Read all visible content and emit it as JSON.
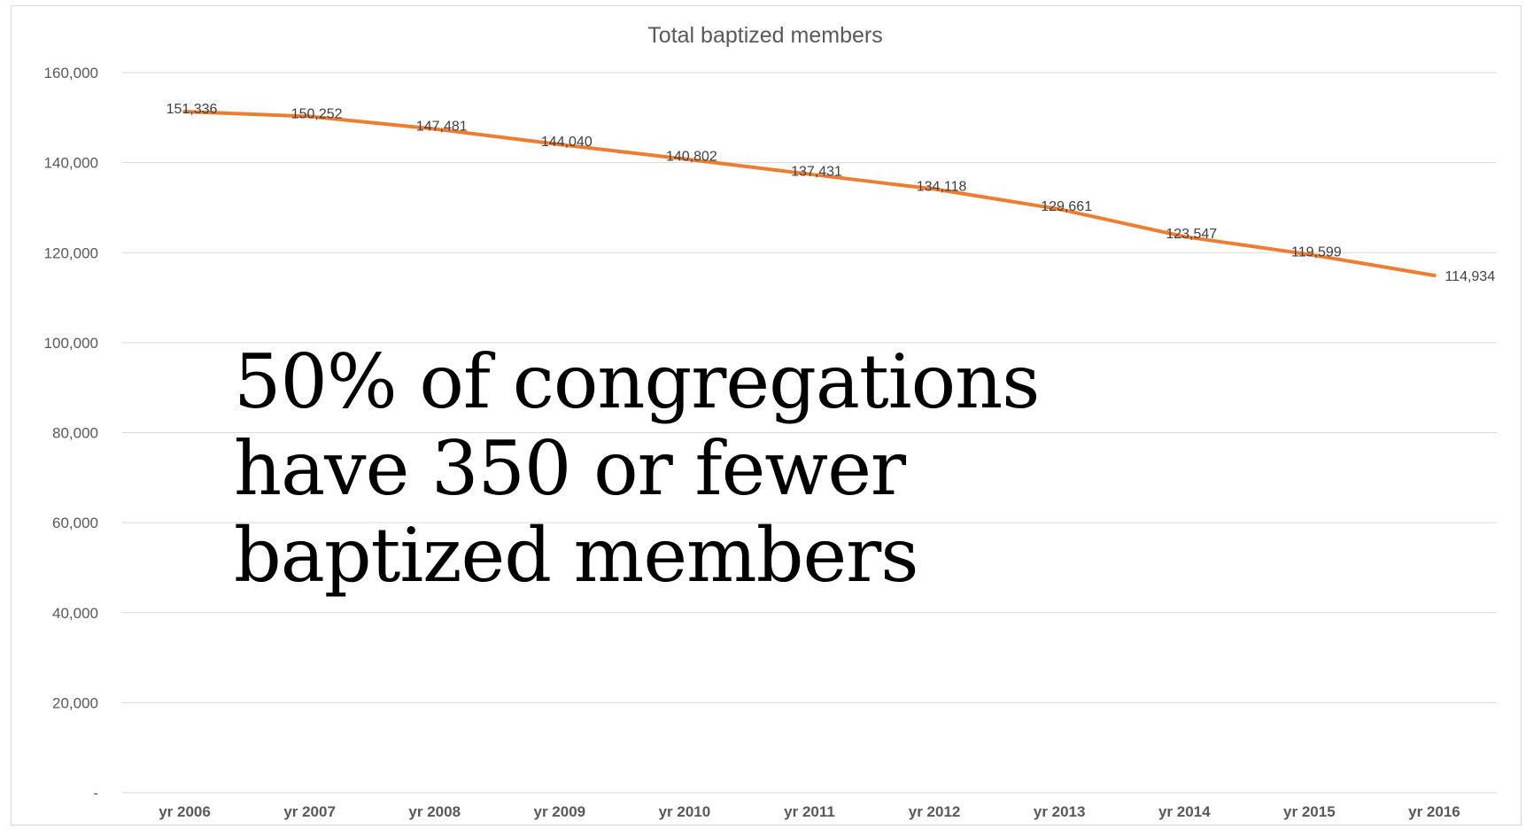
{
  "chart_data": {
    "type": "line",
    "title": "Total baptized members",
    "categories": [
      "yr 2006",
      "yr 2007",
      "yr 2008",
      "yr 2009",
      "yr 2010",
      "yr 2011",
      "yr 2012",
      "yr 2013",
      "yr 2014",
      "yr 2015",
      "yr 2016"
    ],
    "series": [
      {
        "values": [
          151336,
          150252,
          147481,
          144040,
          140802,
          137431,
          134118,
          129661,
          123547,
          119599,
          114934
        ]
      }
    ],
    "data_labels": [
      "151,336",
      "150,252",
      "147,481",
      "144,040",
      "140,802",
      "137,431",
      "134,118",
      "129,661",
      "123,547",
      "119,599",
      "114,934"
    ],
    "ylim": [
      0,
      160000
    ],
    "yticks": [
      0,
      20000,
      40000,
      60000,
      80000,
      100000,
      120000,
      140000,
      160000
    ],
    "ytick_labels": [
      "-",
      "20,000",
      "40,000",
      "60,000",
      "80,000",
      "100,000",
      "120,000",
      "140,000",
      "160,000"
    ],
    "grid": true,
    "legend": "none",
    "colors": {
      "series": "#ed7d31",
      "grid": "#d9d9d9",
      "text": "#595959"
    }
  },
  "overlay_text": {
    "line1": "50% of congregations",
    "line2": "have 350 or fewer",
    "line3": "baptized members"
  }
}
